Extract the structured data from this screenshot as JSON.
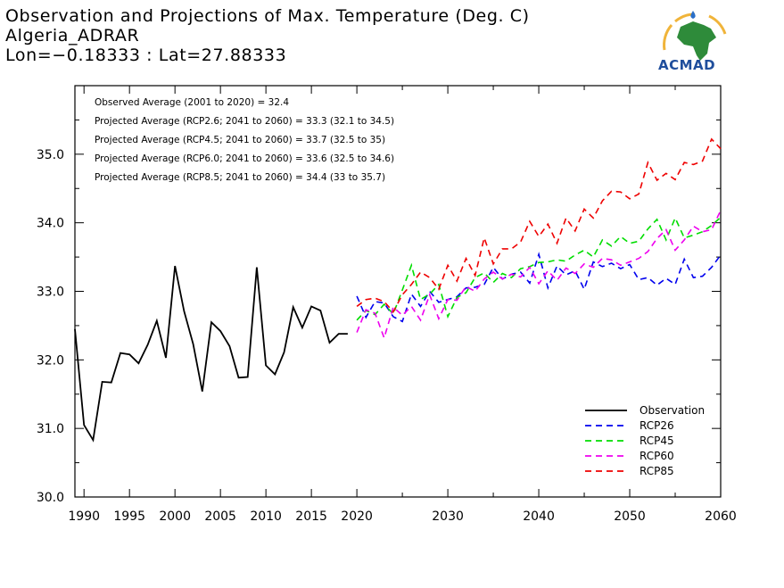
{
  "header": {
    "title": "Observation and Projections of Max. Temperature (Deg. C)",
    "station": "Algeria_ADRAR",
    "coords": "Lon=−0.18333 : Lat=27.88333"
  },
  "logo": {
    "text": "ACMAD",
    "icon": "africa-map-logo"
  },
  "chart_data": {
    "type": "line",
    "xlim": [
      1989,
      2060
    ],
    "ylim": [
      30.0,
      36.0
    ],
    "xticks": [
      {
        "value": 1990,
        "label": "1990"
      },
      {
        "value": 1995,
        "label": "1995"
      },
      {
        "value": 2000,
        "label": "2000"
      },
      {
        "value": 2005,
        "label": "2005"
      },
      {
        "value": 2010,
        "label": "2010"
      },
      {
        "value": 2015,
        "label": "2015"
      },
      {
        "value": 2020,
        "label": "2020"
      },
      {
        "value": 2030,
        "label": "2030"
      },
      {
        "value": 2040,
        "label": "2040"
      },
      {
        "value": 2050,
        "label": "2050"
      },
      {
        "value": 2060,
        "label": "2060"
      }
    ],
    "yticks": [
      {
        "value": 30.0,
        "label": "30.0"
      },
      {
        "value": 31.0,
        "label": "31.0"
      },
      {
        "value": 32.0,
        "label": "32.0"
      },
      {
        "value": 33.0,
        "label": "33.0"
      },
      {
        "value": 34.0,
        "label": "34.0"
      },
      {
        "value": 35.0,
        "label": "35.0"
      }
    ],
    "grid": false,
    "legend_position": "bottom-right",
    "annotations": [
      "Observed Average (2001 to 2020) = 32.4",
      "Projected Average (RCP2.6; 2041 to 2060) = 33.3 (32.1 to 34.5)",
      "Projected Average (RCP4.5; 2041 to 2060) = 33.7 (32.5 to 35)",
      "Projected Average (RCP6.0; 2041 to 2060) = 33.6 (32.5 to 34.6)",
      "Projected Average (RCP8.5; 2041 to 2060) = 34.4 (33 to 35.7)"
    ],
    "series": [
      {
        "name": "Observation",
        "color": "#000000",
        "dash": "solid",
        "x": [
          1989,
          1990,
          1991,
          1992,
          1993,
          1994,
          1995,
          1996,
          1997,
          1998,
          1999,
          2000,
          2001,
          2002,
          2003,
          2004,
          2005,
          2006,
          2007,
          2008,
          2009,
          2010,
          2011,
          2012,
          2013,
          2014,
          2015,
          2016,
          2017,
          2018,
          2019
        ],
        "y": [
          32.45,
          31.05,
          30.83,
          31.68,
          31.67,
          32.1,
          32.08,
          31.95,
          32.22,
          32.57,
          32.03,
          33.37,
          32.71,
          32.23,
          31.54,
          32.55,
          32.42,
          32.2,
          31.74,
          31.75,
          33.35,
          31.92,
          31.79,
          32.11,
          32.77,
          32.47,
          32.78,
          32.72,
          32.25,
          32.38,
          32.38
        ]
      },
      {
        "name": "RCP26",
        "color": "#0000ee",
        "dash": "dashed",
        "x": [
          2020,
          2021,
          2022,
          2023,
          2024,
          2025,
          2026,
          2027,
          2028,
          2029,
          2030,
          2031,
          2032,
          2033,
          2034,
          2035,
          2036,
          2037,
          2038,
          2039,
          2040,
          2041,
          2042,
          2043,
          2044,
          2045,
          2046,
          2047,
          2048,
          2049,
          2050,
          2051,
          2052,
          2053,
          2054,
          2055,
          2056,
          2057,
          2058,
          2059,
          2060
        ],
        "y": [
          32.93,
          32.62,
          32.85,
          32.83,
          32.63,
          32.56,
          32.96,
          32.78,
          33.0,
          32.84,
          32.88,
          32.92,
          33.05,
          33.06,
          33.1,
          33.35,
          33.18,
          33.25,
          33.28,
          33.12,
          33.54,
          33.05,
          33.37,
          33.24,
          33.3,
          33.03,
          33.43,
          33.36,
          33.41,
          33.33,
          33.39,
          33.17,
          33.2,
          33.09,
          33.19,
          33.1,
          33.47,
          33.2,
          33.22,
          33.35,
          33.53
        ]
      },
      {
        "name": "RCP45",
        "color": "#00dd00",
        "dash": "dashed",
        "x": [
          2020,
          2021,
          2022,
          2023,
          2024,
          2025,
          2026,
          2027,
          2028,
          2029,
          2030,
          2031,
          2032,
          2033,
          2034,
          2035,
          2036,
          2037,
          2038,
          2039,
          2040,
          2041,
          2042,
          2043,
          2044,
          2045,
          2046,
          2047,
          2048,
          2049,
          2050,
          2051,
          2052,
          2053,
          2054,
          2055,
          2056,
          2057,
          2058,
          2059,
          2060
        ],
        "y": [
          32.58,
          32.72,
          32.66,
          32.81,
          32.67,
          33.02,
          33.38,
          32.88,
          32.96,
          33.1,
          32.63,
          32.91,
          32.98,
          33.2,
          33.27,
          33.13,
          33.26,
          33.2,
          33.33,
          33.36,
          33.42,
          33.43,
          33.46,
          33.44,
          33.53,
          33.6,
          33.5,
          33.75,
          33.66,
          33.8,
          33.7,
          33.73,
          33.91,
          34.05,
          33.75,
          34.07,
          33.78,
          33.82,
          33.87,
          33.96,
          34.08
        ]
      },
      {
        "name": "RCP60",
        "color": "#ee00ee",
        "dash": "dashed",
        "x": [
          2020,
          2021,
          2022,
          2023,
          2024,
          2025,
          2026,
          2027,
          2028,
          2029,
          2030,
          2031,
          2032,
          2033,
          2034,
          2035,
          2036,
          2037,
          2038,
          2039,
          2040,
          2041,
          2042,
          2043,
          2044,
          2045,
          2046,
          2047,
          2048,
          2049,
          2050,
          2051,
          2052,
          2053,
          2054,
          2055,
          2056,
          2057,
          2058,
          2059,
          2060
        ],
        "y": [
          32.4,
          32.73,
          32.68,
          32.32,
          32.77,
          32.65,
          32.78,
          32.58,
          32.95,
          32.6,
          32.88,
          32.87,
          33.07,
          33.0,
          33.18,
          33.28,
          33.18,
          33.25,
          33.21,
          33.35,
          33.11,
          33.3,
          33.16,
          33.34,
          33.26,
          33.4,
          33.35,
          33.48,
          33.46,
          33.38,
          33.43,
          33.48,
          33.58,
          33.77,
          33.9,
          33.6,
          33.75,
          33.95,
          33.87,
          33.9,
          34.18
        ]
      },
      {
        "name": "RCP85",
        "color": "#ee0000",
        "dash": "dashed",
        "x": [
          2020,
          2021,
          2022,
          2023,
          2024,
          2025,
          2026,
          2027,
          2028,
          2029,
          2030,
          2031,
          2032,
          2033,
          2034,
          2035,
          2036,
          2037,
          2038,
          2039,
          2040,
          2041,
          2042,
          2043,
          2044,
          2045,
          2046,
          2047,
          2048,
          2049,
          2050,
          2051,
          2052,
          2053,
          2054,
          2055,
          2056,
          2057,
          2058,
          2059,
          2060
        ],
        "y": [
          32.78,
          32.88,
          32.9,
          32.85,
          32.7,
          32.95,
          33.1,
          33.28,
          33.2,
          33.03,
          33.38,
          33.15,
          33.48,
          33.23,
          33.78,
          33.4,
          33.62,
          33.62,
          33.72,
          34.02,
          33.8,
          33.98,
          33.7,
          34.07,
          33.88,
          34.2,
          34.07,
          34.32,
          34.46,
          34.45,
          34.35,
          34.42,
          34.88,
          34.62,
          34.72,
          34.63,
          34.88,
          34.85,
          34.9,
          35.22,
          35.08
        ]
      }
    ]
  }
}
